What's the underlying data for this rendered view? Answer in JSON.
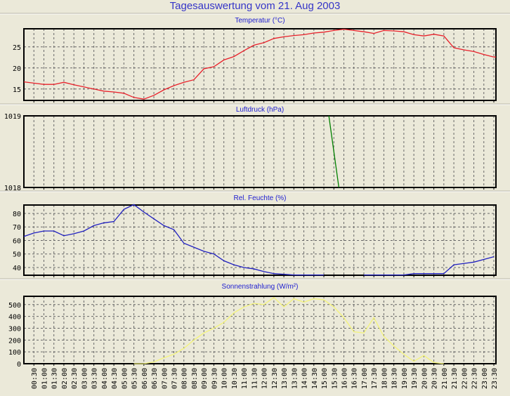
{
  "title": "Tagesauswertung vom 21. Aug 2003",
  "chart_data": [
    {
      "type": "line",
      "title": "Temperatur (°C)",
      "color": "#e8202a",
      "ylim": [
        12.3,
        29.3
      ],
      "yticks": [
        15,
        20,
        25
      ],
      "x_hours_step": 0.5,
      "values": [
        16.7,
        16.4,
        16.1,
        16.1,
        16.6,
        16.0,
        15.5,
        15.0,
        14.5,
        14.3,
        14.0,
        13.0,
        12.6,
        13.5,
        14.8,
        15.8,
        16.6,
        17.2,
        19.8,
        20.3,
        21.9,
        22.7,
        24.1,
        25.4,
        26.0,
        27.0,
        27.4,
        27.7,
        27.9,
        28.3,
        28.5,
        28.9,
        29.2,
        28.9,
        28.6,
        28.2,
        28.9,
        28.8,
        28.6,
        27.9,
        27.6,
        28.0,
        27.6,
        24.8,
        24.3,
        23.9,
        23.2,
        22.6
      ]
    },
    {
      "type": "line",
      "title": "Luftdruck (hPa)",
      "color": "#008000",
      "ylim": [
        1018,
        1019
      ],
      "yticks": [
        1018,
        1019
      ],
      "points": [
        [
          15.25,
          1019
        ],
        [
          15.75,
          1018
        ]
      ]
    },
    {
      "type": "line",
      "title": "Rel. Feuchte (%)",
      "color": "#2020c0",
      "ylim": [
        34.3,
        86.2
      ],
      "yticks": [
        40,
        50,
        60,
        70,
        80
      ],
      "x_hours_step": 0.5,
      "values": [
        63,
        65.5,
        67,
        67,
        63.5,
        65,
        67,
        71,
        73,
        74,
        83,
        86.5,
        81,
        76,
        71,
        68,
        58,
        55,
        52,
        50,
        45,
        42,
        40,
        39,
        37,
        35.5,
        35,
        34.5,
        34.5,
        34.5,
        34.5,
        null,
        null,
        null,
        34.5,
        34.5,
        34.5,
        34.5,
        34.5,
        35.5,
        35.5,
        35.5,
        35.5,
        42,
        43,
        44,
        46,
        48
      ]
    },
    {
      "type": "line",
      "title": "Sonnenstrahlung (W/m²)",
      "color": "#f4f47a",
      "ylim": [
        0,
        570
      ],
      "yticks": [
        0,
        100,
        200,
        300,
        400,
        500
      ],
      "x_hours_step": 0.5,
      "values": [
        null,
        null,
        null,
        null,
        null,
        null,
        null,
        null,
        null,
        null,
        null,
        0,
        0,
        15,
        50,
        80,
        130,
        200,
        260,
        300,
        350,
        430,
        480,
        510,
        500,
        560,
        480,
        550,
        520,
        550,
        540,
        480,
        390,
        270,
        260,
        390,
        230,
        150,
        80,
        20,
        70,
        10,
        0,
        null,
        null,
        null,
        null,
        null
      ]
    }
  ],
  "x_tick_labels": [
    "00:30",
    "01:00",
    "01:30",
    "02:00",
    "02:30",
    "03:00",
    "03:30",
    "04:00",
    "04:30",
    "05:00",
    "05:30",
    "06:00",
    "06:30",
    "07:00",
    "07:30",
    "08:00",
    "08:30",
    "09:00",
    "09:30",
    "10:00",
    "10:30",
    "11:00",
    "11:30",
    "12:00",
    "12:30",
    "13:00",
    "13:30",
    "14:00",
    "14:30",
    "15:00",
    "15:30",
    "16:00",
    "16:30",
    "17:00",
    "17:30",
    "18:00",
    "18:30",
    "19:00",
    "19:30",
    "20:00",
    "20:30",
    "21:00",
    "21:30",
    "22:00",
    "22:30",
    "23:00",
    "23:30"
  ]
}
